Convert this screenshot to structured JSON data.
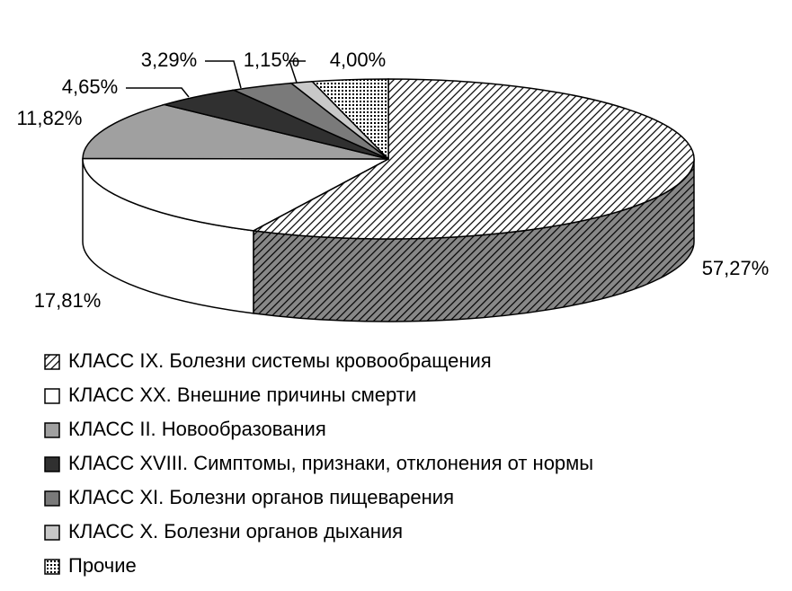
{
  "chart_data": {
    "type": "pie3d",
    "categories": [
      "КЛАСС IX. Болезни системы кровообращения",
      "КЛАСС XX. Внешние причины смерти",
      "КЛАСС II. Новообразования",
      "КЛАСС XVIII. Симптомы, признаки, отклонения от нормы",
      "КЛАСС XI. Болезни органов пищеварения",
      "КЛАСС X. Болезни органов дыхания",
      "Прочие"
    ],
    "values": [
      57.27,
      17.81,
      11.82,
      4.65,
      3.29,
      1.15,
      4.0
    ],
    "value_labels": [
      "57,27%",
      "17,81%",
      "11,82%",
      "4,65%",
      "3,29%",
      "1,15%",
      "4,00%"
    ],
    "colors": [
      "#555555",
      "#ffffff",
      "#a0a0a0",
      "#303030",
      "#7a7a7a",
      "#c8c8c8",
      "#dddddd"
    ],
    "patterns": [
      "hatch",
      "solid",
      "solid",
      "solid",
      "solid",
      "solid",
      "dots"
    ],
    "legend": "bottom-left"
  }
}
